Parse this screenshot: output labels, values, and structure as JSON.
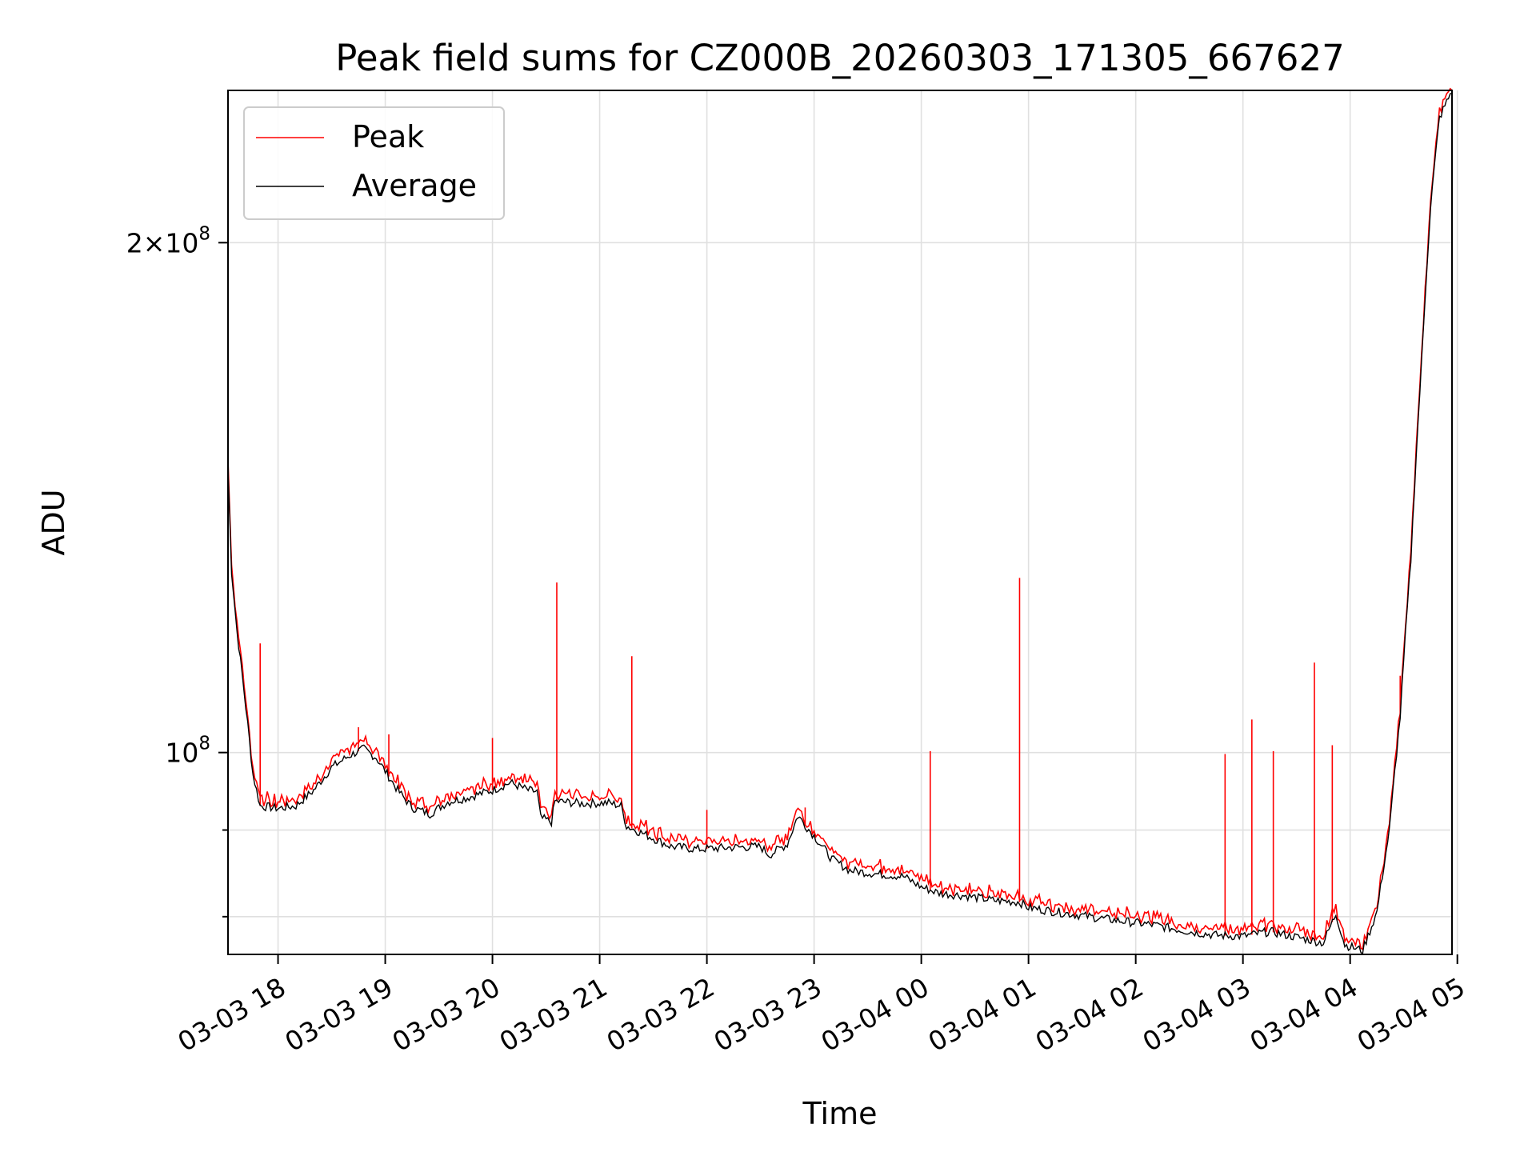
{
  "chart_data": {
    "type": "line",
    "title": "Peak field sums for CZ000B_20260303_171305_667627",
    "xlabel": "Time",
    "ylabel": "ADU",
    "y_scale": "log",
    "xlim": [
      "2026-03-03 17:32",
      "2026-03-04 04:57"
    ],
    "ylim": [
      76000000,
      246000000
    ],
    "x_ticks": [
      "03-03 18",
      "03-03 19",
      "03-03 20",
      "03-03 21",
      "03-03 22",
      "03-03 23",
      "03-04 00",
      "03-04 01",
      "03-04 02",
      "03-04 03",
      "03-04 04",
      "03-04 05"
    ],
    "y_major_ticks": [
      {
        "value": 100000000,
        "mantissa": "",
        "exponent": "8"
      },
      {
        "value": 200000000,
        "mantissa": "2",
        "exponent": "8"
      }
    ],
    "y_minor_ticks": [
      80000000,
      90000000
    ],
    "grid": true,
    "legend": "upper-left",
    "series": [
      {
        "name": "Average",
        "color": "#000000",
        "points": [
          [
            "2026-03-03 17:32",
            147000000
          ],
          [
            "2026-03-03 17:34",
            128000000
          ],
          [
            "2026-03-03 17:37",
            118000000
          ],
          [
            "2026-03-03 17:40",
            111000000
          ],
          [
            "2026-03-03 17:43",
            104000000
          ],
          [
            "2026-03-03 17:46",
            97000000
          ],
          [
            "2026-03-03 17:50",
            93000000
          ],
          [
            "2026-03-03 18:00",
            92700000
          ],
          [
            "2026-03-03 18:10",
            93000000
          ],
          [
            "2026-03-03 18:20",
            95000000
          ],
          [
            "2026-03-03 18:30",
            98000000
          ],
          [
            "2026-03-03 18:40",
            99600000
          ],
          [
            "2026-03-03 18:48",
            100500000
          ],
          [
            "2026-03-03 18:55",
            99300000
          ],
          [
            "2026-03-03 19:00",
            97500000
          ],
          [
            "2026-03-03 19:07",
            95000000
          ],
          [
            "2026-03-03 19:15",
            92800000
          ],
          [
            "2026-03-03 19:25",
            92000000
          ],
          [
            "2026-03-03 19:35",
            93500000
          ],
          [
            "2026-03-03 19:45",
            94000000
          ],
          [
            "2026-03-03 20:00",
            95000000
          ],
          [
            "2026-03-03 20:10",
            96000000
          ],
          [
            "2026-03-03 20:20",
            95000000
          ],
          [
            "2026-03-03 20:25",
            94800000
          ],
          [
            "2026-03-03 20:27",
            91500000
          ],
          [
            "2026-03-03 20:33",
            91000000
          ],
          [
            "2026-03-03 20:35",
            93600000
          ],
          [
            "2026-03-03 20:50",
            93300000
          ],
          [
            "2026-03-03 21:05",
            93400000
          ],
          [
            "2026-03-03 21:12",
            93000000
          ],
          [
            "2026-03-03 21:15",
            90500000
          ],
          [
            "2026-03-03 21:25",
            89500000
          ],
          [
            "2026-03-03 21:40",
            88000000
          ],
          [
            "2026-03-03 21:55",
            87700000
          ],
          [
            "2026-03-03 22:15",
            87900000
          ],
          [
            "2026-03-03 22:30",
            88000000
          ],
          [
            "2026-03-03 22:35",
            87000000
          ],
          [
            "2026-03-03 22:45",
            88300000
          ],
          [
            "2026-03-03 22:51",
            91800000
          ],
          [
            "2026-03-03 22:55",
            90600000
          ],
          [
            "2026-03-03 23:00",
            89300000
          ],
          [
            "2026-03-03 23:10",
            86500000
          ],
          [
            "2026-03-03 23:20",
            85200000
          ],
          [
            "2026-03-03 23:35",
            84800000
          ],
          [
            "2026-03-03 23:50",
            84500000
          ],
          [
            "2026-03-04 00:00",
            83300000
          ],
          [
            "2026-03-04 00:10",
            82600000
          ],
          [
            "2026-03-04 00:25",
            82300000
          ],
          [
            "2026-03-04 00:40",
            81800000
          ],
          [
            "2026-03-04 00:55",
            81600000
          ],
          [
            "2026-03-04 01:00",
            81000000
          ],
          [
            "2026-03-04 01:20",
            80400000
          ],
          [
            "2026-03-04 01:45",
            79700000
          ],
          [
            "2026-03-04 02:10",
            79100000
          ],
          [
            "2026-03-04 02:30",
            78400000
          ],
          [
            "2026-03-04 02:45",
            78000000
          ],
          [
            "2026-03-04 03:00",
            77900000
          ],
          [
            "2026-03-04 03:15",
            78400000
          ],
          [
            "2026-03-04 03:30",
            77800000
          ],
          [
            "2026-03-04 03:45",
            77200000
          ],
          [
            "2026-03-04 03:52",
            80300000
          ],
          [
            "2026-03-04 03:57",
            77000000
          ],
          [
            "2026-03-04 04:07",
            76400000
          ],
          [
            "2026-03-04 04:15",
            80500000
          ],
          [
            "2026-03-04 04:22",
            90000000
          ],
          [
            "2026-03-04 04:28",
            105000000
          ],
          [
            "2026-03-04 04:34",
            130000000
          ],
          [
            "2026-03-04 04:40",
            170000000
          ],
          [
            "2026-03-04 04:45",
            210000000
          ],
          [
            "2026-03-04 04:50",
            237000000
          ],
          [
            "2026-03-04 04:57",
            246000000
          ]
        ]
      },
      {
        "name": "Peak",
        "color": "#ff0000",
        "spikes": [
          [
            "2026-03-03 17:50",
            116000000
          ],
          [
            "2026-03-03 18:45",
            103500000
          ],
          [
            "2026-03-03 19:02",
            102500000
          ],
          [
            "2026-03-03 20:00",
            102000000
          ],
          [
            "2026-03-03 20:36",
            126000000
          ],
          [
            "2026-03-03 21:18",
            114000000
          ],
          [
            "2026-03-03 22:00",
            92500000
          ],
          [
            "2026-03-03 22:55",
            92800000
          ],
          [
            "2026-03-04 00:05",
            100200000
          ],
          [
            "2026-03-04 00:55",
            126800000
          ],
          [
            "2026-03-04 02:50",
            99800000
          ],
          [
            "2026-03-04 03:05",
            104600000
          ],
          [
            "2026-03-04 03:17",
            100200000
          ],
          [
            "2026-03-04 03:40",
            113000000
          ],
          [
            "2026-03-04 03:50",
            101000000
          ],
          [
            "2026-03-04 04:28",
            111000000
          ]
        ]
      }
    ]
  }
}
